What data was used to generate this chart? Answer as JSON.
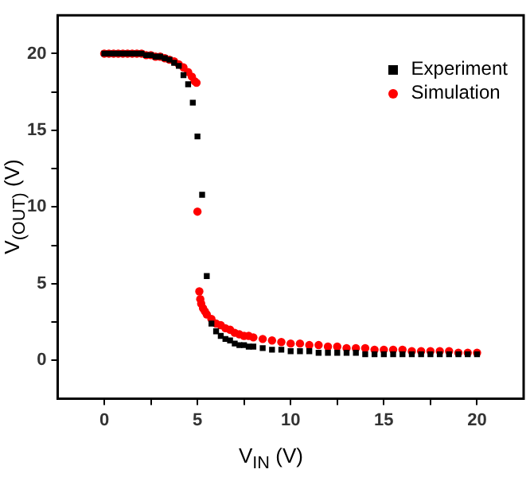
{
  "chart_data": {
    "type": "scatter",
    "xlabel": "V$_{IN}$  (V)",
    "ylabel": "V$_{(OUT)}$  (V)",
    "xlim": [
      -2.5,
      22.5
    ],
    "ylim": [
      -2.5,
      22.5
    ],
    "xticks": [
      0,
      {
        "value": 2.5,
        "label": null
      },
      5,
      {
        "value": 7.5,
        "label": null
      },
      10,
      {
        "value": 12.5,
        "label": null
      },
      15,
      {
        "value": 17.5,
        "label": null
      },
      20
    ],
    "yticks": [
      0,
      {
        "value": 2.5,
        "label": null
      },
      5,
      {
        "value": 7.5,
        "label": null
      },
      10,
      {
        "value": 12.5,
        "label": null
      },
      15,
      {
        "value": 17.5,
        "label": null
      },
      20
    ],
    "grid": false,
    "legend": "top right",
    "series": [
      {
        "name": "Experiment",
        "color": "#000000",
        "marker": "square",
        "x": [
          0,
          0.25,
          0.5,
          0.75,
          1,
          1.25,
          1.5,
          1.75,
          2,
          2.25,
          2.5,
          2.75,
          3,
          3.25,
          3.5,
          3.75,
          4,
          4.25,
          4.5,
          4.75,
          5,
          5.25,
          5.5,
          5.75,
          6,
          6.25,
          6.5,
          6.75,
          7,
          7.25,
          7.5,
          7.75,
          8,
          8.5,
          9,
          9.5,
          10,
          10.5,
          11,
          11.5,
          12,
          12.5,
          13,
          13.5,
          14,
          14.5,
          15,
          15.5,
          16,
          16.5,
          17,
          17.5,
          18,
          18.5,
          19,
          19.5,
          20
        ],
        "values": [
          20,
          20,
          20,
          20,
          20,
          20,
          20,
          20,
          20,
          19.9,
          19.9,
          19.8,
          19.8,
          19.7,
          19.6,
          19.4,
          19.2,
          18.6,
          18,
          16.8,
          14.6,
          10.8,
          5.5,
          2.4,
          1.9,
          1.6,
          1.4,
          1.3,
          1.1,
          1.0,
          1.0,
          0.9,
          0.9,
          0.8,
          0.7,
          0.7,
          0.6,
          0.6,
          0.6,
          0.5,
          0.5,
          0.5,
          0.5,
          0.5,
          0.4,
          0.4,
          0.4,
          0.4,
          0.4,
          0.4,
          0.4,
          0.4,
          0.4,
          0.4,
          0.4,
          0.4,
          0.4
        ]
      },
      {
        "name": "Simulation",
        "color": "#ff0000",
        "marker": "circle",
        "x": [
          0,
          0.25,
          0.5,
          0.75,
          1,
          1.25,
          1.5,
          1.75,
          2,
          2.25,
          2.5,
          2.75,
          3,
          3.25,
          3.5,
          3.75,
          4,
          4.25,
          4.5,
          4.7,
          4.85,
          4.95,
          5,
          5.1,
          5.15,
          5.2,
          5.3,
          5.4,
          5.5,
          5.75,
          6,
          6.25,
          6.5,
          6.75,
          7,
          7.25,
          7.5,
          7.75,
          8,
          8.5,
          9,
          9.5,
          10,
          10.5,
          11,
          11.5,
          12,
          12.5,
          13,
          13.5,
          14,
          14.5,
          15,
          15.5,
          16,
          16.5,
          17,
          17.5,
          18,
          18.5,
          19,
          19.5,
          20
        ],
        "values": [
          20,
          20,
          20,
          20,
          20,
          20,
          20,
          20,
          20,
          19.9,
          19.9,
          19.8,
          19.8,
          19.7,
          19.6,
          19.5,
          19.3,
          19.1,
          18.8,
          18.5,
          18.2,
          18.1,
          9.7,
          4.5,
          4.0,
          3.7,
          3.4,
          3.2,
          3.0,
          2.7,
          2.4,
          2.3,
          2.1,
          2.0,
          1.8,
          1.7,
          1.6,
          1.6,
          1.5,
          1.4,
          1.3,
          1.2,
          1.1,
          1.1,
          1.0,
          1.0,
          0.9,
          0.9,
          0.8,
          0.8,
          0.8,
          0.7,
          0.7,
          0.7,
          0.7,
          0.6,
          0.6,
          0.6,
          0.6,
          0.6,
          0.5,
          0.5,
          0.5
        ]
      }
    ]
  }
}
